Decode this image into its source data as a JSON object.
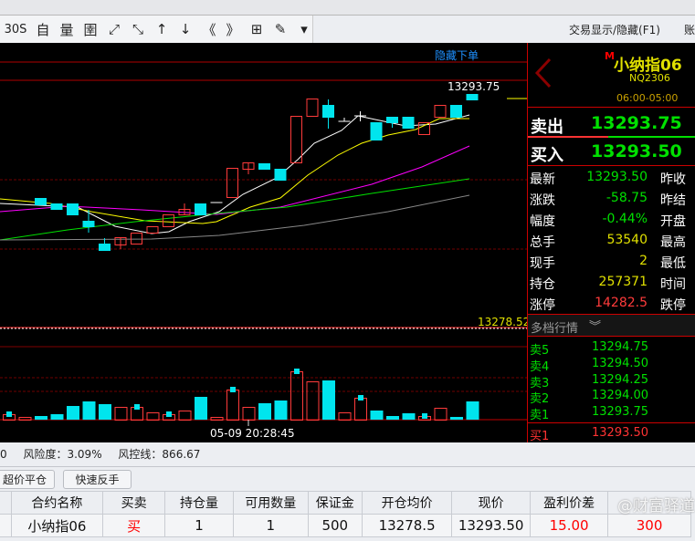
{
  "toolbar": {
    "items": [
      {
        "name": "period-30s",
        "label": "30S"
      },
      {
        "name": "custom",
        "label": "自"
      },
      {
        "name": "volume",
        "label": "量"
      },
      {
        "name": "indicator",
        "label": "圉"
      },
      {
        "name": "expand",
        "label": "⤢"
      },
      {
        "name": "shrink",
        "label": "⤡"
      },
      {
        "name": "up",
        "label": "↑"
      },
      {
        "name": "down",
        "label": "↓"
      },
      {
        "name": "prev-page",
        "label": "《"
      },
      {
        "name": "next-page",
        "label": "》"
      },
      {
        "name": "grid",
        "label": "⊞"
      },
      {
        "name": "draw",
        "label": "✎"
      },
      {
        "name": "more",
        "label": "▾"
      }
    ],
    "trade_toggle": "交易显示/隐藏(F1)",
    "account": "账户"
  },
  "chart": {
    "hide_order": "隐藏下单",
    "last_price_label": "13293.75",
    "avg_price_label": "13278.52",
    "cursor_time": "05-09 20:28:45",
    "colors": {
      "up": "#ff3b3b",
      "down": "#00e5ee",
      "ma1": "#ffffff",
      "ma2": "#ffff00",
      "ma3": "#ff00ff",
      "ma4": "#00e000",
      "ma5": "#888888"
    }
  },
  "quote": {
    "badge": "M",
    "name": "小纳指06",
    "code": "NQ2306",
    "session": "06:00-05:00",
    "sell_label": "卖出",
    "sell_price": "13293.75",
    "buy_label": "买入",
    "buy_price": "13293.50",
    "rows": [
      {
        "label": "最新",
        "value": "13293.50",
        "right": "昨收",
        "color": "#00e000"
      },
      {
        "label": "涨跌",
        "value": "-58.75",
        "right": "昨结",
        "color": "#00e000"
      },
      {
        "label": "幅度",
        "value": "-0.44%",
        "right": "开盘",
        "color": "#00e000"
      },
      {
        "label": "总手",
        "value": "53540",
        "right": "最高",
        "color": "#e0e000"
      },
      {
        "label": "现手",
        "value": "2",
        "right": "最低",
        "color": "#e0e000"
      },
      {
        "label": "持仓",
        "value": "257371",
        "right": "时间",
        "color": "#e0e000"
      },
      {
        "label": "涨停",
        "value": "14282.5",
        "right": "跌停",
        "color": "#ff3b3b"
      }
    ],
    "depth_title": "多档行情",
    "asks": [
      {
        "label": "卖5",
        "price": "13294.75"
      },
      {
        "label": "卖4",
        "price": "13294.50"
      },
      {
        "label": "卖3",
        "price": "13294.25"
      },
      {
        "label": "卖2",
        "price": "13294.00"
      },
      {
        "label": "卖1",
        "price": "13293.75"
      }
    ],
    "bid": {
      "label": "买1",
      "price": "13293.50"
    }
  },
  "status": {
    "prefix": "0",
    "risk": "风险度：3.09%",
    "risk_line": "风控线：866.67"
  },
  "buttons": {
    "close_over": "超价平仓",
    "reverse": "快速反手"
  },
  "positions": {
    "headers": [
      "合约名称",
      "买卖",
      "持仓量",
      "可用数量",
      "保证金",
      "开仓均价",
      "现价",
      "盈利价差",
      ""
    ],
    "rows": [
      [
        "小纳指06",
        "买",
        "1",
        "1",
        "500",
        "13278.5",
        "13293.50",
        "15.00",
        "300"
      ]
    ]
  },
  "watermark": "@财富驿道"
}
